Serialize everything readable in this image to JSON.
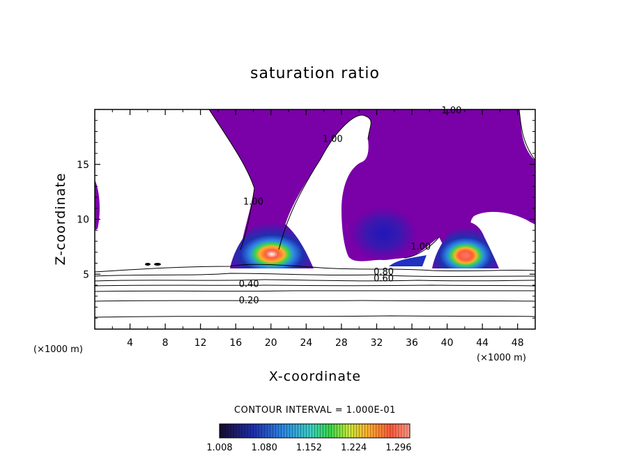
{
  "chart_data": {
    "type": "heatmap",
    "title": "saturation ratio",
    "xlabel": "X-coordinate",
    "ylabel": "Z-coordinate",
    "x_unit": "(×1000 m)",
    "x_unit_right": "(×1000 m)",
    "xlim": [
      0,
      50
    ],
    "ylim": [
      0,
      20
    ],
    "x_ticks": [
      4,
      8,
      12,
      16,
      20,
      24,
      28,
      32,
      36,
      40,
      44,
      48
    ],
    "x_tick_labels": [
      "4",
      "8",
      "12",
      "16",
      "20",
      "24",
      "28",
      "32",
      "36",
      "40",
      "44",
      "48"
    ],
    "y_ticks": [
      5,
      10,
      15
    ],
    "y_tick_labels": [
      "5",
      "10",
      "15"
    ],
    "contour_interval_text": "CONTOUR INTERVAL = 1.000E-01",
    "contour_labels": [
      {
        "text": "1.00",
        "x": 40.5,
        "z": 19.9
      },
      {
        "text": "1.00",
        "x": 27,
        "z": 17.3
      },
      {
        "text": "1.00",
        "x": 18,
        "z": 11.6
      },
      {
        "text": "1.00",
        "x": 37,
        "z": 7.5
      },
      {
        "text": "0.80",
        "x": 32.8,
        "z": 5.2
      },
      {
        "text": "0.60",
        "x": 32.8,
        "z": 4.6
      },
      {
        "text": "0.40",
        "x": 17.5,
        "z": 4.1
      },
      {
        "text": "0.20",
        "x": 17.5,
        "z": 2.6
      }
    ],
    "colorbar": {
      "min": 1.008,
      "max": 1.314,
      "tick_values": [
        1.008,
        1.08,
        1.152,
        1.224,
        1.296
      ],
      "tick_labels": [
        "1.008",
        "1.080",
        "1.152",
        "1.224",
        "1.296"
      ]
    },
    "colors": {
      "supersaturated_fill": "#7a00a8",
      "dark_core": "#1e18b8",
      "hot_core": "#ff5a3c",
      "ice_core": "#ffffff"
    }
  }
}
